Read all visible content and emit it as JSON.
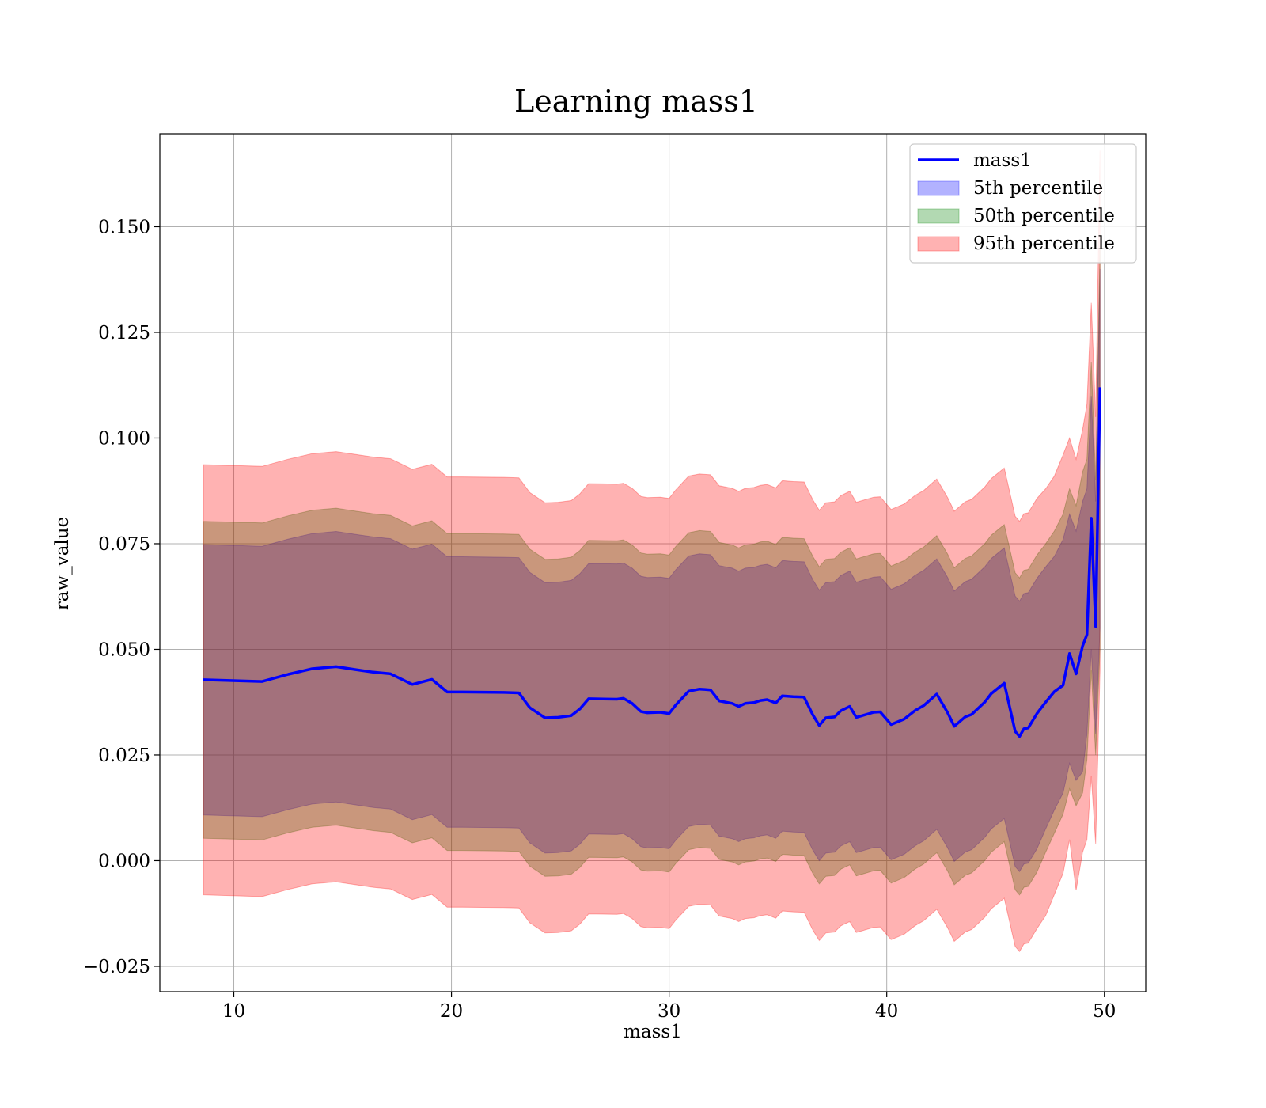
{
  "chart_data": {
    "type": "line",
    "title": "Learning mass1",
    "xlabel": "mass1",
    "ylabel": "raw_value",
    "xlim": [
      6.6,
      51.9
    ],
    "ylim": [
      -0.031,
      0.172
    ],
    "xticks": [
      10,
      20,
      30,
      40,
      50
    ],
    "xtick_labels": [
      "10",
      "20",
      "30",
      "40",
      "50"
    ],
    "yticks": [
      -0.025,
      0.0,
      0.025,
      0.05,
      0.075,
      0.1,
      0.125,
      0.15
    ],
    "ytick_labels": [
      "−0.025",
      "0.000",
      "0.025",
      "0.050",
      "0.075",
      "0.100",
      "0.125",
      "0.150"
    ],
    "grid": true,
    "legend_position": "top-right",
    "legend": [
      "mass1",
      "5th percentile",
      "50th percentile",
      "95th percentile"
    ],
    "colors": {
      "line": "#0000ff",
      "band_5th": "#0000ff",
      "band_50th": "#008000",
      "band_95th": "#ff0000"
    },
    "x": [
      8.6,
      11.3,
      12.5,
      13.6,
      14.7,
      15.6,
      16.4,
      17.2,
      18.2,
      19.1,
      19.8,
      20.5,
      22.4,
      23.1,
      23.6,
      24.3,
      24.9,
      25.5,
      25.9,
      26.3,
      27.6,
      27.9,
      28.3,
      28.7,
      29.0,
      29.6,
      30.0,
      30.3,
      30.9,
      31.4,
      31.9,
      32.3,
      32.9,
      33.2,
      33.5,
      33.9,
      34.2,
      34.5,
      34.9,
      35.2,
      35.7,
      36.2,
      36.6,
      36.9,
      37.2,
      37.6,
      37.9,
      38.3,
      38.6,
      39.4,
      39.7,
      40.2,
      40.8,
      41.3,
      41.7,
      42.3,
      42.8,
      43.1,
      43.6,
      43.9,
      44.5,
      44.8,
      45.4,
      45.9,
      46.1,
      46.3,
      46.5,
      46.9,
      47.3,
      47.7,
      48.1,
      48.4,
      48.7,
      49.0,
      49.2,
      49.4,
      49.6,
      49.8
    ],
    "series": [
      {
        "name": "mass1",
        "values": [
          0.0428,
          0.0424,
          0.0441,
          0.0454,
          0.0459,
          0.0452,
          0.0446,
          0.0442,
          0.0417,
          0.0429,
          0.0399,
          0.0399,
          0.0398,
          0.0397,
          0.0362,
          0.0338,
          0.0339,
          0.0343,
          0.0359,
          0.0383,
          0.0382,
          0.0384,
          0.0372,
          0.0353,
          0.035,
          0.0351,
          0.0348,
          0.0368,
          0.0401,
          0.0406,
          0.0404,
          0.0378,
          0.0372,
          0.0365,
          0.0372,
          0.0374,
          0.0379,
          0.0381,
          0.0373,
          0.039,
          0.0388,
          0.0387,
          0.0345,
          0.032,
          0.0338,
          0.034,
          0.0355,
          0.0365,
          0.0339,
          0.0351,
          0.0352,
          0.0322,
          0.0335,
          0.0355,
          0.0367,
          0.0394,
          0.035,
          0.0318,
          0.034,
          0.0346,
          0.0375,
          0.0395,
          0.042,
          0.0306,
          0.0294,
          0.0312,
          0.0314,
          0.0348,
          0.0375,
          0.04,
          0.0415,
          0.049,
          0.0442,
          0.0508,
          0.0535,
          0.081,
          0.0554,
          0.112
        ]
      },
      {
        "name": "5th percentile",
        "lower": [
          0.0108,
          0.0104,
          0.0121,
          0.0134,
          0.0139,
          0.0132,
          0.0126,
          0.0122,
          0.0097,
          0.0109,
          0.0079,
          0.0079,
          0.0078,
          0.0077,
          0.0042,
          0.0018,
          0.0019,
          0.0023,
          0.0039,
          0.0063,
          0.0062,
          0.0064,
          0.0052,
          0.0033,
          0.003,
          0.0031,
          0.0028,
          0.0048,
          0.0081,
          0.0086,
          0.0084,
          0.0058,
          0.0052,
          0.0045,
          0.0052,
          0.0054,
          0.0059,
          0.0061,
          0.0053,
          0.007,
          0.0068,
          0.0067,
          0.0025,
          0.0,
          0.0018,
          0.002,
          0.0035,
          0.0045,
          0.0019,
          0.0031,
          0.0032,
          0.0002,
          0.0015,
          0.0035,
          0.0047,
          0.0074,
          0.003,
          -0.0002,
          0.002,
          0.0026,
          0.0055,
          0.0075,
          0.01,
          -0.0014,
          -0.0026,
          -0.0008,
          -0.0006,
          0.0028,
          0.0075,
          0.012,
          0.016,
          0.023,
          0.019,
          0.021,
          0.03,
          0.05,
          0.03,
          0.055
        ],
        "upper": [
          0.0748,
          0.0744,
          0.0761,
          0.0774,
          0.0779,
          0.0772,
          0.0766,
          0.0762,
          0.0737,
          0.0749,
          0.0719,
          0.0719,
          0.0718,
          0.0717,
          0.0682,
          0.0658,
          0.0659,
          0.0663,
          0.0679,
          0.0703,
          0.0702,
          0.0704,
          0.0692,
          0.0673,
          0.067,
          0.0671,
          0.0668,
          0.0688,
          0.0721,
          0.0726,
          0.0724,
          0.0698,
          0.0692,
          0.0685,
          0.0692,
          0.0694,
          0.0699,
          0.0701,
          0.0693,
          0.071,
          0.0708,
          0.0707,
          0.0665,
          0.064,
          0.0658,
          0.066,
          0.0675,
          0.0685,
          0.0659,
          0.0671,
          0.0672,
          0.0642,
          0.0655,
          0.0675,
          0.0687,
          0.0714,
          0.067,
          0.0638,
          0.066,
          0.0666,
          0.0695,
          0.0715,
          0.074,
          0.0626,
          0.0614,
          0.0632,
          0.0634,
          0.0668,
          0.0695,
          0.072,
          0.076,
          0.082,
          0.078,
          0.085,
          0.088,
          0.11,
          0.085,
          0.14
        ]
      },
      {
        "name": "50th percentile",
        "lower": [
          0.0053,
          0.0049,
          0.0066,
          0.0079,
          0.0084,
          0.0077,
          0.0071,
          0.0067,
          0.0042,
          0.0054,
          0.0024,
          0.0024,
          0.0023,
          0.0022,
          -0.0013,
          -0.0037,
          -0.0036,
          -0.0032,
          -0.0016,
          0.0008,
          0.0007,
          0.0009,
          -0.0003,
          -0.0022,
          -0.0025,
          -0.0024,
          -0.0027,
          -0.0007,
          0.0026,
          0.0031,
          0.0029,
          0.0003,
          -0.0003,
          -0.001,
          -0.0003,
          -0.0001,
          0.0004,
          0.0006,
          -0.0002,
          0.0015,
          0.0013,
          0.0012,
          -0.003,
          -0.0055,
          -0.0037,
          -0.0035,
          -0.002,
          -0.001,
          -0.0036,
          -0.0024,
          -0.0023,
          -0.0053,
          -0.004,
          -0.002,
          -0.0008,
          0.0019,
          -0.0025,
          -0.0057,
          -0.0035,
          -0.0029,
          0.0,
          0.002,
          0.0045,
          -0.0069,
          -0.0081,
          -0.0063,
          -0.0061,
          -0.0027,
          0.002,
          0.0065,
          0.011,
          0.017,
          0.013,
          0.016,
          0.024,
          0.045,
          0.025,
          0.05
        ],
        "upper": [
          0.0803,
          0.0799,
          0.0816,
          0.0829,
          0.0834,
          0.0827,
          0.0821,
          0.0817,
          0.0792,
          0.0804,
          0.0774,
          0.0774,
          0.0773,
          0.0772,
          0.0737,
          0.0713,
          0.0714,
          0.0718,
          0.0734,
          0.0758,
          0.0757,
          0.0759,
          0.0747,
          0.0728,
          0.0725,
          0.0726,
          0.0723,
          0.0743,
          0.0776,
          0.0781,
          0.0779,
          0.0753,
          0.0747,
          0.074,
          0.0747,
          0.0749,
          0.0754,
          0.0756,
          0.0748,
          0.0765,
          0.0763,
          0.0762,
          0.072,
          0.0695,
          0.0713,
          0.0715,
          0.073,
          0.074,
          0.0714,
          0.0726,
          0.0727,
          0.0697,
          0.071,
          0.073,
          0.0742,
          0.0769,
          0.0725,
          0.0693,
          0.0715,
          0.0721,
          0.075,
          0.077,
          0.0795,
          0.0681,
          0.0669,
          0.0687,
          0.0689,
          0.0723,
          0.075,
          0.078,
          0.082,
          0.088,
          0.084,
          0.092,
          0.095,
          0.118,
          0.09,
          0.145
        ]
      },
      {
        "name": "95th percentile",
        "lower": [
          -0.0081,
          -0.0085,
          -0.0068,
          -0.0055,
          -0.005,
          -0.0057,
          -0.0063,
          -0.0067,
          -0.0092,
          -0.008,
          -0.011,
          -0.011,
          -0.0111,
          -0.0112,
          -0.0147,
          -0.0171,
          -0.017,
          -0.0166,
          -0.015,
          -0.0126,
          -0.0127,
          -0.0125,
          -0.0137,
          -0.0156,
          -0.0159,
          -0.0158,
          -0.0161,
          -0.0141,
          -0.0108,
          -0.0103,
          -0.0105,
          -0.0131,
          -0.0137,
          -0.0144,
          -0.0137,
          -0.0135,
          -0.013,
          -0.0128,
          -0.0136,
          -0.0119,
          -0.0121,
          -0.0122,
          -0.0164,
          -0.0189,
          -0.0171,
          -0.0169,
          -0.0154,
          -0.0144,
          -0.017,
          -0.0158,
          -0.0157,
          -0.0187,
          -0.0174,
          -0.0154,
          -0.0142,
          -0.0115,
          -0.0159,
          -0.0191,
          -0.0169,
          -0.0163,
          -0.0134,
          -0.0114,
          -0.0089,
          -0.0203,
          -0.0215,
          -0.0197,
          -0.0195,
          -0.0161,
          -0.013,
          -0.008,
          -0.003,
          0.005,
          -0.007,
          0.002,
          0.005,
          0.02,
          0.004,
          0.045
        ],
        "upper": [
          0.0937,
          0.0933,
          0.095,
          0.0963,
          0.0968,
          0.0961,
          0.0955,
          0.0951,
          0.0926,
          0.0938,
          0.0908,
          0.0908,
          0.0907,
          0.0906,
          0.0871,
          0.0847,
          0.0848,
          0.0852,
          0.0868,
          0.0892,
          0.0891,
          0.0893,
          0.0881,
          0.0862,
          0.0859,
          0.086,
          0.0857,
          0.0877,
          0.091,
          0.0915,
          0.0913,
          0.0887,
          0.0881,
          0.0874,
          0.0881,
          0.0883,
          0.0888,
          0.089,
          0.0882,
          0.0899,
          0.0897,
          0.0896,
          0.0854,
          0.0829,
          0.0847,
          0.0849,
          0.0864,
          0.0874,
          0.0848,
          0.086,
          0.0861,
          0.0831,
          0.0844,
          0.0864,
          0.0876,
          0.0903,
          0.0859,
          0.0827,
          0.0849,
          0.0855,
          0.0884,
          0.0904,
          0.0929,
          0.0815,
          0.0803,
          0.0821,
          0.0823,
          0.0857,
          0.088,
          0.091,
          0.096,
          0.1,
          0.095,
          0.102,
          0.108,
          0.132,
          0.105,
          0.168
        ]
      }
    ]
  }
}
